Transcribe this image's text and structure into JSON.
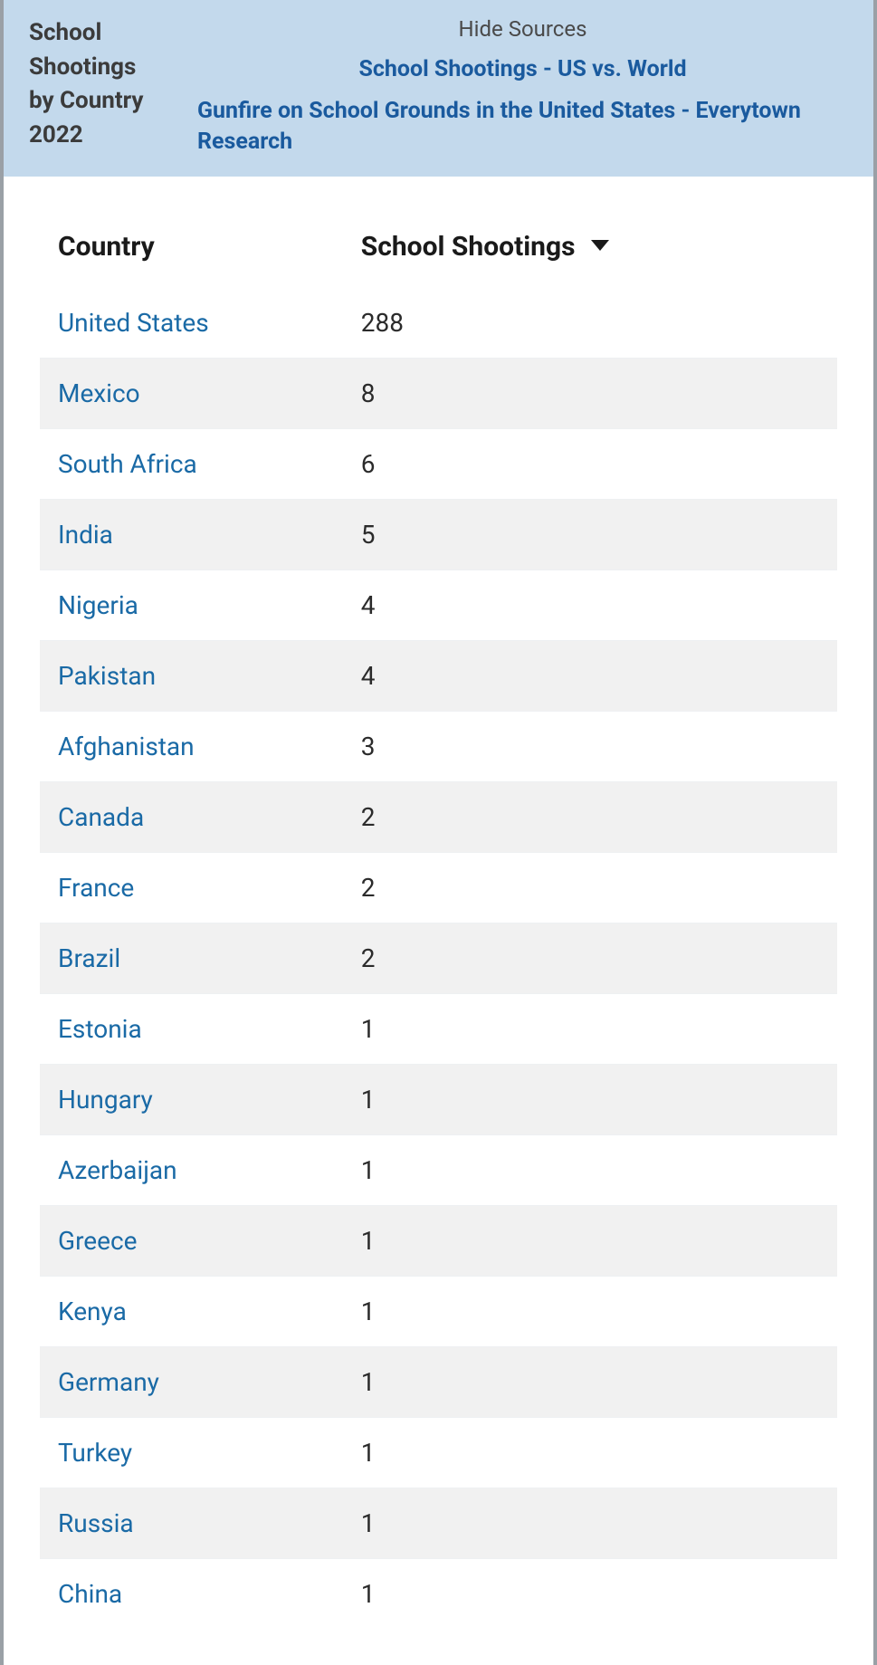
{
  "header": {
    "title": "School Shootings by Country 2022",
    "hide_sources_label": "Hide Sources",
    "sources": [
      "School Shootings - US vs. World",
      "Gunfire on School Grounds in the United States - Everytown Research"
    ]
  },
  "table": {
    "type": "table",
    "background_color": "#ffffff",
    "row_alt_color": "#f1f1f1",
    "link_color": "#1a6aa6",
    "text_color": "#2b2b2b",
    "header_fontsize": 30,
    "cell_fontsize": 28,
    "sort": {
      "column": "value",
      "direction": "desc"
    },
    "columns": [
      {
        "key": "country",
        "label": "Country",
        "width_pct": 38,
        "align": "left"
      },
      {
        "key": "value",
        "label": "School Shootings",
        "width_pct": 62,
        "align": "left",
        "sortable": true
      }
    ],
    "rows": [
      {
        "country": "United States",
        "value": 288
      },
      {
        "country": "Mexico",
        "value": 8
      },
      {
        "country": "South Africa",
        "value": 6
      },
      {
        "country": "India",
        "value": 5
      },
      {
        "country": "Nigeria",
        "value": 4
      },
      {
        "country": "Pakistan",
        "value": 4
      },
      {
        "country": "Afghanistan",
        "value": 3
      },
      {
        "country": "Canada",
        "value": 2
      },
      {
        "country": "France",
        "value": 2
      },
      {
        "country": "Brazil",
        "value": 2
      },
      {
        "country": "Estonia",
        "value": 1
      },
      {
        "country": "Hungary",
        "value": 1
      },
      {
        "country": "Azerbaijan",
        "value": 1
      },
      {
        "country": "Greece",
        "value": 1
      },
      {
        "country": "Kenya",
        "value": 1
      },
      {
        "country": "Germany",
        "value": 1
      },
      {
        "country": "Turkey",
        "value": 1
      },
      {
        "country": "Russia",
        "value": 1
      },
      {
        "country": "China",
        "value": 1
      }
    ]
  },
  "colors": {
    "header_bg": "#c3d9ec",
    "header_title": "#3b3b3b",
    "source_link": "#1a5a9e",
    "frame_border": "#9aa0a6"
  }
}
